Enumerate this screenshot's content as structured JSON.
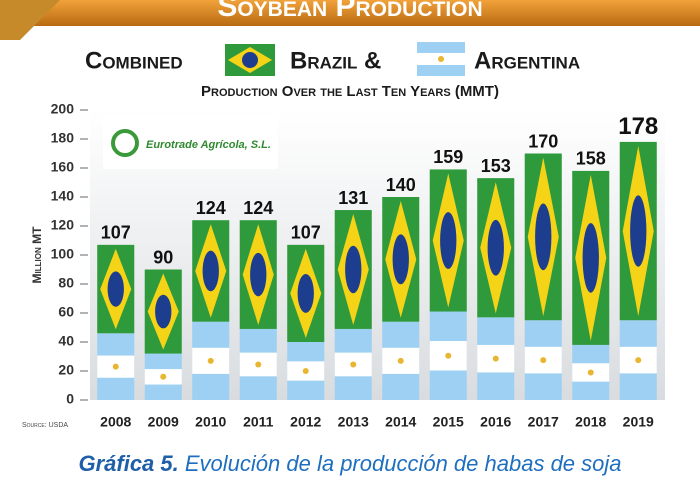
{
  "chart_data": {
    "type": "stacked_bar",
    "banner": "Soybean Production",
    "title_words": [
      "Combined",
      "Brazil &",
      "Argentina"
    ],
    "subtitle": "Production Over the Last Ten Years (MMT)",
    "ylabel": "Million MT",
    "logo_text": "Eurotrade Agrícola, S.L.",
    "source": "Source: USDA",
    "categories": [
      "2008",
      "2009",
      "2010",
      "2011",
      "2012",
      "2013",
      "2014",
      "2015",
      "2016",
      "2017",
      "2018",
      "2019"
    ],
    "series": [
      {
        "color": "#9dd0f2",
        "values": [
          46,
          32,
          54,
          49,
          40,
          49,
          54,
          61,
          57,
          55,
          38,
          55
        ]
      },
      {
        "color": "#2f9a3c",
        "values": [
          61,
          58,
          70,
          75,
          67,
          82,
          86,
          98,
          96,
          115,
          120,
          123
        ]
      }
    ],
    "totals": [
      107,
      90,
      124,
      124,
      107,
      131,
      140,
      159,
      153,
      170,
      158,
      178
    ],
    "ylim": [
      0,
      200
    ],
    "yticks": [
      0,
      20,
      40,
      60,
      80,
      100,
      120,
      140,
      160,
      180,
      200
    ],
    "grid": false
  },
  "caption": {
    "label": "Gráfica 5.",
    "text": "Evolución de la producción de habas de soja"
  }
}
